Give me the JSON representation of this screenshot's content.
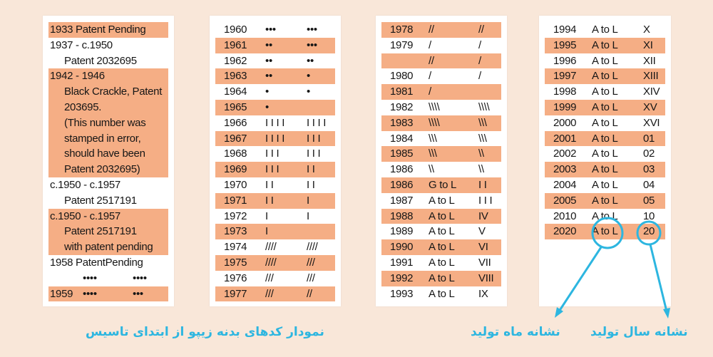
{
  "panel1": [
    {
      "text": "1933  Patent Pending",
      "hl": true
    },
    {
      "text": "1937 - c.1950",
      "hl": false
    },
    {
      "text": "Patent 2032695",
      "hl": false,
      "indent": true
    },
    {
      "block": true,
      "lines": [
        {
          "text": "1942 - 1946",
          "indent": false
        },
        {
          "text": "Black Crackle, Patent",
          "indent": true
        },
        {
          "text": "203695.",
          "indent": true
        },
        {
          "text": "(This number was",
          "indent": true
        },
        {
          "text": "stamped in error,",
          "indent": true
        },
        {
          "text": "should have been",
          "indent": true
        },
        {
          "text": "Patent 2032695)",
          "indent": true
        }
      ]
    },
    {
      "text": "c.1950 - c.1957",
      "hl": false
    },
    {
      "text": "Patent 2517191",
      "hl": false,
      "indent": true
    },
    {
      "block": true,
      "lines": [
        {
          "text": "c.1950 - c.1957",
          "indent": false
        },
        {
          "text": "Patent 2517191",
          "indent": true
        },
        {
          "text": "with patent pending",
          "indent": true
        }
      ]
    },
    {
      "text": "1958   PatentPending",
      "hl": false
    },
    {
      "dots": true,
      "a": "••••",
      "b": "••••",
      "hl": false
    },
    {
      "dots": true,
      "year": "1959",
      "a": "••••",
      "b": "•••",
      "hl": true
    }
  ],
  "panel2": [
    {
      "y": "1960",
      "a": "•••",
      "b": "•••",
      "hl": false
    },
    {
      "y": "1961",
      "a": "••",
      "b": "•••",
      "hl": true
    },
    {
      "y": "1962",
      "a": "••",
      "b": "••",
      "hl": false
    },
    {
      "y": "1963",
      "a": "••",
      "b": "•",
      "hl": true
    },
    {
      "y": "1964",
      "a": "•",
      "b": "•",
      "hl": false
    },
    {
      "y": "1965",
      "a": "•",
      "b": "",
      "hl": true
    },
    {
      "y": "1966",
      "a": "I I I I",
      "b": "I I I I",
      "hl": false
    },
    {
      "y": "1967",
      "a": "I I I I",
      "b": "I I I",
      "hl": true
    },
    {
      "y": "1968",
      "a": "I I I",
      "b": "I I I",
      "hl": false
    },
    {
      "y": "1969",
      "a": "I I I",
      "b": "I I",
      "hl": true
    },
    {
      "y": "1970",
      "a": "I I",
      "b": "I I",
      "hl": false
    },
    {
      "y": "1971",
      "a": "I I",
      "b": "I",
      "hl": true
    },
    {
      "y": "1972",
      "a": "I",
      "b": "I",
      "hl": false
    },
    {
      "y": "1973",
      "a": "I",
      "b": "",
      "hl": true
    },
    {
      "y": "1974",
      "a": "////",
      "b": "////",
      "hl": false
    },
    {
      "y": "1975",
      "a": "////",
      "b": "///",
      "hl": true
    },
    {
      "y": "1976",
      "a": "///",
      "b": "///",
      "hl": false
    },
    {
      "y": "1977",
      "a": "///",
      "b": "//",
      "hl": true
    }
  ],
  "panel3": [
    {
      "y": "1978",
      "a": "//",
      "b": "//",
      "hl": true
    },
    {
      "y": "1979",
      "a": "/",
      "b": "/",
      "hl": false
    },
    {
      "y": "",
      "a": "//",
      "b": "/",
      "hl": true
    },
    {
      "y": "1980",
      "a": "/",
      "b": "/",
      "hl": false
    },
    {
      "y": "1981",
      "a": "/",
      "b": "",
      "hl": true
    },
    {
      "y": "1982",
      "a": "\\\\\\\\",
      "b": "\\\\\\\\",
      "hl": false
    },
    {
      "y": "1983",
      "a": "\\\\\\\\",
      "b": "\\\\\\",
      "hl": true
    },
    {
      "y": "1984",
      "a": "\\\\\\",
      "b": "\\\\\\",
      "hl": false
    },
    {
      "y": "1985",
      "a": "\\\\\\",
      "b": "\\\\",
      "hl": true
    },
    {
      "y": "1986",
      "a": "\\\\",
      "b": "\\\\",
      "hl": false
    },
    {
      "y": "1986",
      "a": "G to L",
      "b": "I I",
      "hl": true
    },
    {
      "y": "1987",
      "a": "A to L",
      "b": "I I I",
      "hl": false
    },
    {
      "y": "1988",
      "a": "A to L",
      "b": "IV",
      "hl": true
    },
    {
      "y": "1989",
      "a": "A to L",
      "b": "V",
      "hl": false
    },
    {
      "y": "1990",
      "a": "A to L",
      "b": "VI",
      "hl": true
    },
    {
      "y": "1991",
      "a": "A to L",
      "b": "VII",
      "hl": false
    },
    {
      "y": "1992",
      "a": "A to L",
      "b": "VIII",
      "hl": true
    },
    {
      "y": "1993",
      "a": "A to L",
      "b": "IX",
      "hl": false
    }
  ],
  "panel4": [
    {
      "y": "1994",
      "a": "A to L",
      "b": "X",
      "hl": false
    },
    {
      "y": "1995",
      "a": "A to L",
      "b": "XI",
      "hl": true
    },
    {
      "y": "1996",
      "a": "A to L",
      "b": "XII",
      "hl": false
    },
    {
      "y": "1997",
      "a": "A to L",
      "b": "XIII",
      "hl": true
    },
    {
      "y": "1998",
      "a": "A to L",
      "b": "XIV",
      "hl": false
    },
    {
      "y": "1999",
      "a": "A to L",
      "b": "XV",
      "hl": true
    },
    {
      "y": "2000",
      "a": "A to L",
      "b": "XVI",
      "hl": false
    },
    {
      "y": "2001",
      "a": "A to L",
      "b": "01",
      "hl": true
    },
    {
      "y": "2002",
      "a": "A to L",
      "b": "02",
      "hl": false
    },
    {
      "y": "2003",
      "a": "A to L",
      "b": "03",
      "hl": true
    },
    {
      "y": "2004",
      "a": "A to L",
      "b": "04",
      "hl": false
    },
    {
      "y": "2005",
      "a": "A to L",
      "b": "05",
      "hl": true
    },
    {
      "y": "2010",
      "a": "A to L",
      "b": "10",
      "hl": false
    },
    {
      "y": "2020",
      "a": "A to L",
      "b": "20",
      "hl": true
    }
  ],
  "captions": {
    "main": "نمودار کدهای بدنه زیپو از ابتدای تاسیس",
    "month": "نشانه ماه تولید",
    "year": "نشانه سال تولید"
  },
  "colors": {
    "highlight": "#f5ae85",
    "accent": "#2db6e0",
    "background": "#f9e7d9"
  }
}
